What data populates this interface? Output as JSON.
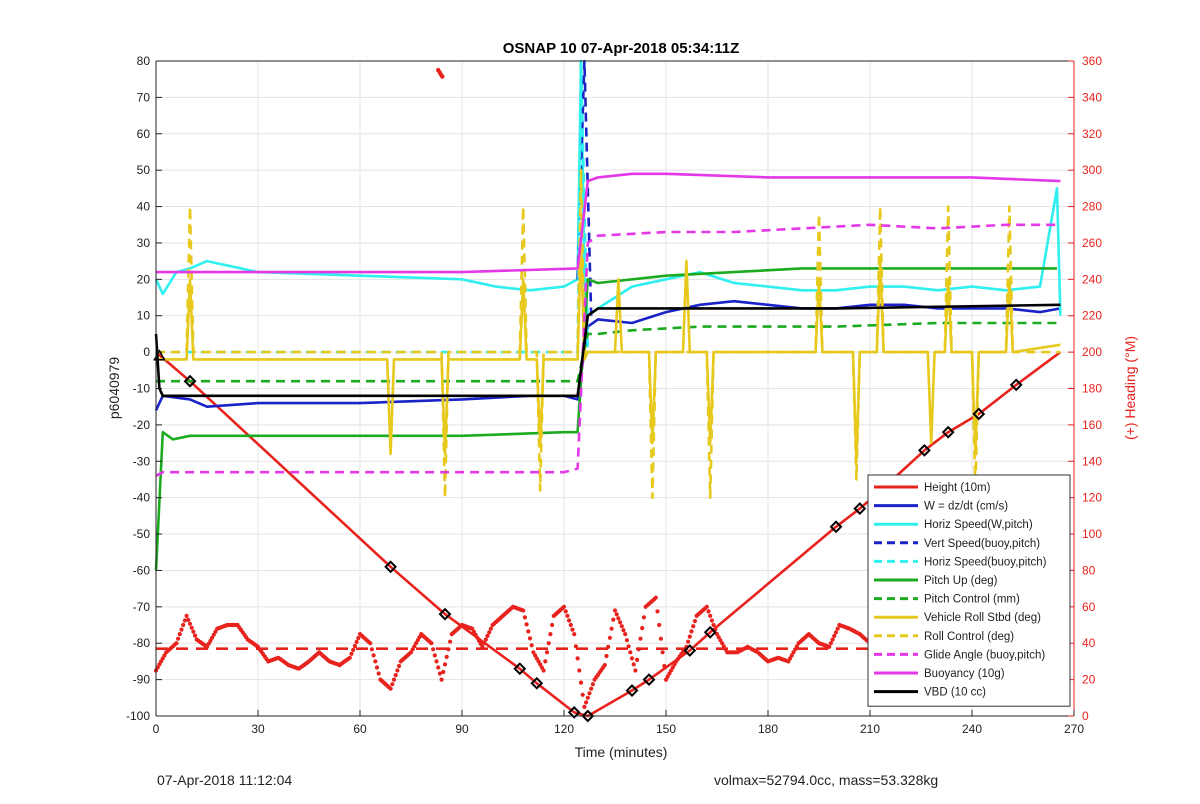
{
  "footer": {
    "left": "07-Apr-2018 11:12:04",
    "right": "volmax=52794.0cc, mass=53.328kg"
  },
  "chart_data": {
    "type": "line",
    "title": "OSNAP 10 07-Apr-2018 05:34:11Z",
    "xlabel": "Time (minutes)",
    "ylabel": "p6040979",
    "y2label": "(+) Heading (°M)",
    "xlim": [
      0,
      270
    ],
    "ylim": [
      -100,
      80
    ],
    "y2lim": [
      0,
      360
    ],
    "xticks": [
      0,
      30,
      60,
      90,
      120,
      150,
      180,
      210,
      240,
      270
    ],
    "yticks": [
      -100,
      -90,
      -80,
      -70,
      -60,
      -50,
      -40,
      -30,
      -20,
      -10,
      0,
      10,
      20,
      30,
      40,
      50,
      60,
      70,
      80
    ],
    "y2ticks": [
      0,
      20,
      40,
      60,
      80,
      100,
      120,
      140,
      160,
      180,
      200,
      220,
      240,
      260,
      280,
      300,
      320,
      340,
      360
    ],
    "grid": true,
    "legend_position": "bottom-right",
    "colors": {
      "red": "#e8221d",
      "blue": "#1a23c8",
      "cyan": "#2ff0ef",
      "green": "#1caa20",
      "yellow": "#e7c81d",
      "magenta": "#e438e8",
      "black": "#000000",
      "right_axis": "#e8221d"
    },
    "series": [
      {
        "name": "Height (10m)",
        "color": "#e8221d",
        "style": "solid",
        "x": [
          0,
          10,
          69,
          85,
          107,
          112,
          123,
          127,
          140,
          145,
          148,
          157,
          163,
          200,
          207,
          212,
          226,
          233,
          242,
          253,
          266
        ],
        "y": [
          0,
          -8,
          -59,
          -72,
          -87,
          -91,
          -99,
          -100,
          -93,
          -90,
          -88,
          -82,
          -77,
          -48,
          -43,
          -39,
          -27,
          -22,
          -17,
          -9,
          0
        ]
      },
      {
        "name": "W = dz/dt (cm/s)",
        "color": "#1a23c8",
        "style": "solid",
        "x": [
          0,
          2,
          10,
          15,
          30,
          60,
          90,
          110,
          120,
          124,
          127,
          130,
          140,
          150,
          160,
          170,
          180,
          190,
          200,
          210,
          220,
          230,
          240,
          250,
          260,
          266
        ],
        "y": [
          -16,
          -12,
          -13,
          -15,
          -14,
          -14,
          -13,
          -12,
          -12,
          -13,
          7,
          9,
          8,
          11,
          13,
          14,
          13,
          12,
          12,
          13,
          13,
          12,
          12,
          12,
          11,
          12
        ]
      },
      {
        "name": "Horiz Speed(W,pitch)",
        "color": "#2ff0ef",
        "style": "solid",
        "x": [
          0,
          2,
          6,
          10,
          15,
          30,
          60,
          90,
          100,
          110,
          120,
          124,
          125,
          126,
          127,
          130,
          140,
          150,
          160,
          170,
          180,
          190,
          200,
          210,
          220,
          230,
          240,
          250,
          260,
          265,
          266
        ],
        "y": [
          20,
          16,
          22,
          23,
          25,
          22,
          21,
          20,
          18,
          17,
          18,
          20,
          80,
          20,
          10,
          12,
          18,
          20,
          22,
          19,
          18,
          17,
          17,
          18,
          18,
          17,
          18,
          17,
          18,
          45,
          10
        ]
      },
      {
        "name": "Vert Speed(buoy,pitch)",
        "color": "#1a23c8",
        "style": "dashed",
        "x": [
          124,
          126,
          128
        ],
        "y": [
          20,
          80,
          10
        ]
      },
      {
        "name": "Horiz Speed(buoy,pitch)",
        "color": "#2ff0ef",
        "style": "dashed",
        "x": [
          0,
          124,
          125,
          127,
          128
        ],
        "y": [
          0,
          0,
          80,
          0,
          0
        ]
      },
      {
        "name": "Pitch Up (deg)",
        "color": "#1caa20",
        "style": "solid",
        "x": [
          0,
          2,
          5,
          10,
          30,
          60,
          90,
          120,
          124,
          127,
          130,
          150,
          170,
          190,
          210,
          230,
          250,
          265
        ],
        "y": [
          -60,
          -22,
          -24,
          -23,
          -23,
          -23,
          -23,
          -22,
          -22,
          20,
          19,
          21,
          22,
          23,
          23,
          23,
          23,
          23
        ]
      },
      {
        "name": "Pitch Control (mm)",
        "color": "#1caa20",
        "style": "dashed",
        "x": [
          0,
          2,
          60,
          124,
          127,
          130,
          140,
          160,
          180,
          200,
          230,
          266
        ],
        "y": [
          -8,
          -8,
          -8,
          -8,
          5,
          5,
          6,
          7,
          7,
          7,
          8,
          8
        ]
      },
      {
        "name": "Vehicle Roll Stbd (deg)",
        "color": "#e7c81d",
        "style": "solid",
        "x": [
          0,
          9,
          10,
          11,
          30,
          68,
          69,
          70,
          84,
          85,
          86,
          107,
          108,
          109,
          112,
          113,
          114,
          124,
          125,
          126,
          127,
          135,
          136,
          137,
          145,
          146,
          147,
          150,
          155,
          156,
          157,
          162,
          163,
          164,
          180,
          194,
          195,
          196,
          200,
          205,
          206,
          207,
          210,
          212,
          213,
          214,
          227,
          228,
          229,
          232,
          233,
          234,
          240,
          241,
          242,
          250,
          251,
          252,
          266
        ],
        "y": [
          -2,
          -2,
          20,
          -2,
          -2,
          -2,
          -28,
          -2,
          -2,
          -28,
          -2,
          -2,
          20,
          -2,
          -2,
          -26,
          -2,
          -2,
          30,
          -2,
          0,
          0,
          20,
          0,
          0,
          -25,
          0,
          0,
          0,
          25,
          0,
          0,
          -25,
          0,
          0,
          0,
          20,
          0,
          0,
          0,
          -30,
          0,
          0,
          0,
          25,
          0,
          0,
          -25,
          0,
          0,
          20,
          0,
          0,
          -28,
          0,
          0,
          20,
          0,
          2
        ]
      },
      {
        "name": "Roll Control (deg)",
        "color": "#e7c81d",
        "style": "dashed",
        "x": [
          0,
          9,
          10,
          11,
          84,
          85,
          86,
          107,
          108,
          109,
          112,
          113,
          114,
          124,
          125,
          126,
          127,
          145,
          146,
          147,
          162,
          163,
          164,
          194,
          195,
          196,
          205,
          206,
          207,
          212,
          213,
          214,
          232,
          233,
          234,
          240,
          241,
          242,
          250,
          251,
          252,
          266
        ],
        "y": [
          0,
          0,
          40,
          0,
          0,
          -40,
          0,
          0,
          40,
          0,
          0,
          -38,
          0,
          0,
          50,
          0,
          0,
          0,
          -40,
          0,
          0,
          -40,
          0,
          0,
          38,
          0,
          0,
          -35,
          0,
          0,
          40,
          0,
          0,
          40,
          0,
          0,
          -38,
          0,
          0,
          40,
          0,
          0
        ]
      },
      {
        "name": "Glide Angle (buoy,pitch)",
        "color": "#e438e8",
        "style": "dashed",
        "x": [
          0,
          2,
          10,
          60,
          100,
          120,
          124,
          127,
          130,
          150,
          170,
          190,
          210,
          230,
          250,
          266
        ],
        "y": [
          -34,
          -33,
          -33,
          -33,
          -33,
          -33,
          -32,
          30,
          32,
          33,
          33,
          34,
          35,
          34,
          35,
          35
        ]
      },
      {
        "name": "Buoyancy (10g)",
        "color": "#e438e8",
        "style": "solid",
        "x": [
          0,
          30,
          60,
          90,
          124,
          127,
          130,
          140,
          150,
          180,
          210,
          240,
          266
        ],
        "y": [
          22,
          22,
          22,
          22,
          23,
          47,
          48,
          49,
          49,
          48,
          48,
          48,
          47
        ]
      },
      {
        "name": "VBD (10 cc)",
        "color": "#000000",
        "style": "solid",
        "x": [
          0,
          1,
          2,
          10,
          30,
          60,
          90,
          120,
          124,
          127,
          130,
          150,
          200,
          266
        ],
        "y": [
          5,
          -10,
          -12,
          -12,
          -12,
          -12,
          -12,
          -12,
          -12,
          10,
          12,
          12,
          12,
          13
        ]
      }
    ],
    "heading": {
      "name": "Heading",
      "axis": "right",
      "color": "#e8221d",
      "x": [
        0,
        3,
        6,
        9,
        12,
        15,
        18,
        21,
        24,
        27,
        30,
        33,
        36,
        39,
        42,
        45,
        48,
        51,
        54,
        57,
        60,
        63,
        66,
        69,
        72,
        75,
        78,
        81,
        84,
        87,
        90,
        93,
        96,
        99,
        102,
        105,
        108,
        111,
        114,
        117,
        120,
        123,
        126,
        129,
        132,
        135,
        138,
        141,
        144,
        147,
        150,
        153,
        156,
        159,
        162,
        165,
        168,
        171,
        174,
        177,
        180,
        183,
        186,
        189,
        192,
        195,
        198,
        201,
        204,
        207,
        210,
        213,
        216,
        219,
        222,
        225,
        228,
        231,
        234,
        237,
        240,
        243,
        246,
        249,
        252,
        255,
        258,
        261,
        264
      ],
      "y": [
        25,
        35,
        40,
        55,
        42,
        38,
        48,
        50,
        50,
        42,
        38,
        30,
        32,
        28,
        26,
        30,
        35,
        30,
        28,
        32,
        45,
        40,
        20,
        15,
        30,
        35,
        45,
        40,
        20,
        45,
        50,
        48,
        38,
        50,
        55,
        60,
        58,
        35,
        25,
        55,
        60,
        45,
        5,
        20,
        28,
        58,
        45,
        25,
        60,
        65,
        20,
        30,
        38,
        55,
        60,
        45,
        35,
        35,
        38,
        35,
        30,
        32,
        30,
        40,
        45,
        40,
        38,
        50,
        48,
        45,
        40,
        50,
        45,
        35,
        28,
        25,
        30,
        45,
        50,
        30,
        25,
        40,
        45,
        40,
        35,
        30,
        28,
        30,
        25
      ]
    },
    "heading_outlier": {
      "x": 83,
      "y2": 355
    },
    "heading_mean": {
      "y2": 37
    },
    "height_markers": {
      "x": [
        10,
        69,
        85,
        107,
        112,
        123,
        127,
        140,
        145,
        157,
        163,
        200,
        207,
        212,
        226,
        233,
        242,
        253
      ],
      "y": [
        -8,
        -59,
        -72,
        -87,
        -91,
        -99,
        -100,
        -93,
        -90,
        -82,
        -77,
        -48,
        -43,
        -39,
        -27,
        -22,
        -17,
        -9
      ]
    },
    "start_marker": {
      "x": 1,
      "y": -1
    }
  }
}
